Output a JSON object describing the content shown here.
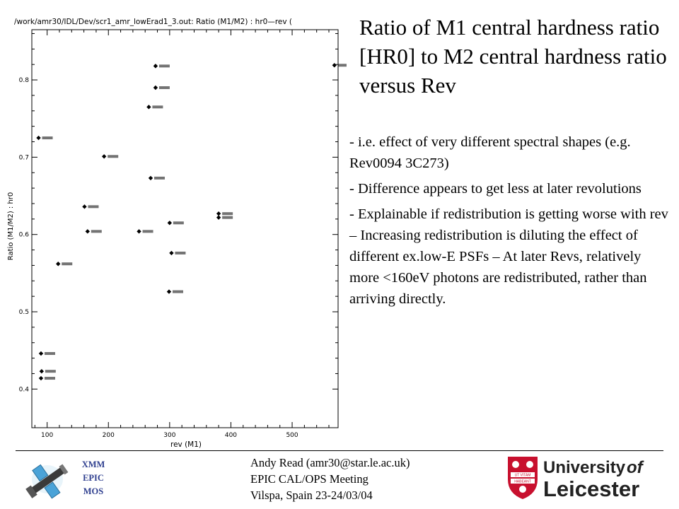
{
  "slide": {
    "title": "Ratio of M1 central hardness ratio [HR0] to M2 central hardness ratio versus Rev",
    "bullets": [
      "- i.e. effect of very different spectral shapes (e.g. Rev0094 3C273)",
      "- Difference appears to get less at later revolutions",
      "- Explainable if redistribution is getting worse with rev – Increasing redistribution is diluting the effect of different ex.low-E PSFs – At later Revs, relatively more <160eV photons are redistributed, rather than arriving directly."
    ]
  },
  "footer": {
    "line1": "Andy Read (amr30@star.le.ac.uk)",
    "line2": "EPIC CAL/OPS Meeting",
    "line3": "Vilspa, Spain 23-24/03/04"
  },
  "logos": {
    "xmm": [
      "XMM",
      "EPIC",
      "MOS"
    ],
    "university_word1": "University",
    "university_word2": "of",
    "university_name": "Leicester",
    "shield_motto_1": "UT VITAM",
    "shield_motto_2": "HABEANT",
    "university_color": "#c8102e",
    "xmm_text_color": "#2f3f8f"
  },
  "chart_data": {
    "type": "scatter",
    "title": "/work/amr30/IDL/Dev/scr1_amr_lowErad1_3.out: Ratio (M1/M2) : hr0—rev (",
    "xlabel": "rev (M1)",
    "ylabel": "Ratio (M1/M2) : hr0",
    "xlim": [
      75,
      575
    ],
    "ylim": [
      0.35,
      0.865
    ],
    "xticks": [
      100,
      200,
      300,
      400,
      500
    ],
    "yticks": [
      0.4,
      0.5,
      0.6,
      0.7,
      0.8
    ],
    "grid": false,
    "points": [
      {
        "x": 86,
        "y": 0.725
      },
      {
        "x": 90,
        "y": 0.446
      },
      {
        "x": 91,
        "y": 0.423
      },
      {
        "x": 90,
        "y": 0.414
      },
      {
        "x": 118,
        "y": 0.562
      },
      {
        "x": 161,
        "y": 0.636
      },
      {
        "x": 166,
        "y": 0.604
      },
      {
        "x": 193,
        "y": 0.701
      },
      {
        "x": 250,
        "y": 0.604
      },
      {
        "x": 266,
        "y": 0.765
      },
      {
        "x": 269,
        "y": 0.673
      },
      {
        "x": 277,
        "y": 0.818
      },
      {
        "x": 277,
        "y": 0.79
      },
      {
        "x": 300,
        "y": 0.615
      },
      {
        "x": 303,
        "y": 0.576
      },
      {
        "x": 299,
        "y": 0.526
      },
      {
        "x": 380,
        "y": 0.627
      },
      {
        "x": 380,
        "y": 0.622
      },
      {
        "x": 569,
        "y": 0.819
      }
    ]
  }
}
